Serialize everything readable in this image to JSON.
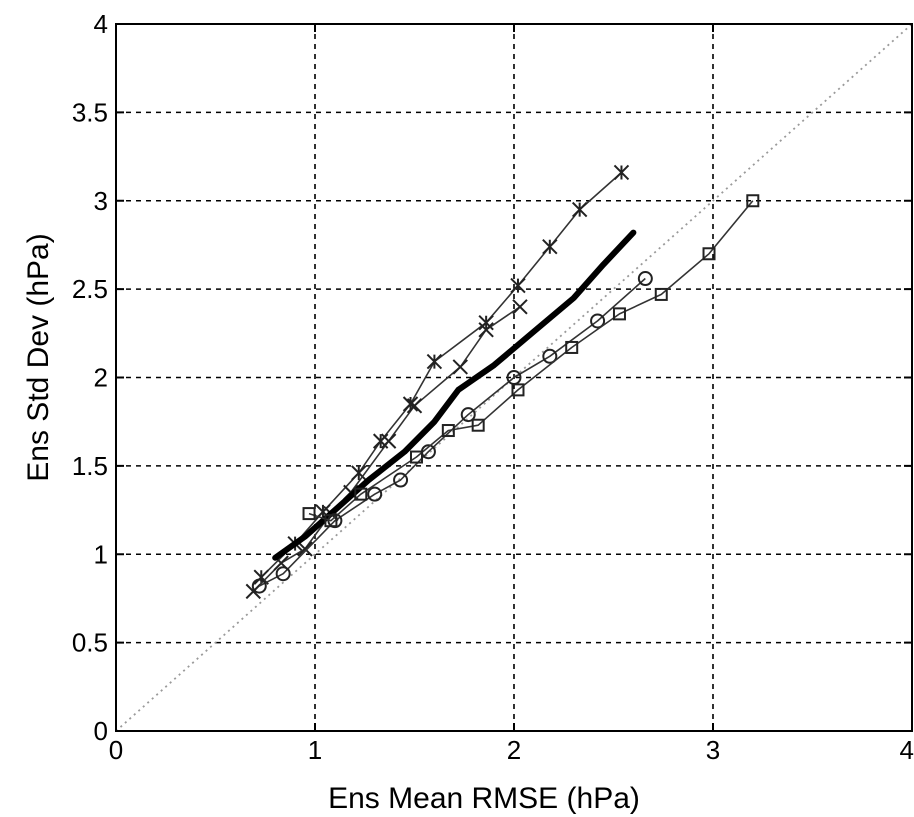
{
  "chart_data": {
    "type": "line",
    "title": "",
    "xlabel": "Ens Mean RMSE (hPa)",
    "ylabel": "Ens Std Dev (hPa)",
    "xlim": [
      0,
      4
    ],
    "ylim": [
      0,
      4
    ],
    "grid": true,
    "x_ticks": [
      0,
      1,
      2,
      3,
      4
    ],
    "y_ticks": [
      0,
      0.5,
      1,
      1.5,
      2,
      2.5,
      3,
      3.5,
      4
    ],
    "x_tick_labels": [
      "0",
      "1",
      "2",
      "3",
      "4"
    ],
    "y_tick_labels": [
      "0",
      "0.5",
      "1",
      "1.5",
      "2",
      "2.5",
      "3",
      "3.5",
      "4"
    ],
    "reference_line": {
      "style": "dotted",
      "from": [
        0,
        0
      ],
      "to": [
        4,
        4
      ]
    },
    "series": [
      {
        "marker": "star",
        "points": [
          [
            0.73,
            0.87
          ],
          [
            0.9,
            1.06
          ],
          [
            1.04,
            1.24
          ],
          [
            1.22,
            1.46
          ],
          [
            1.33,
            1.64
          ],
          [
            1.48,
            1.85
          ],
          [
            1.6,
            2.09
          ],
          [
            1.86,
            2.31
          ],
          [
            2.02,
            2.52
          ],
          [
            2.18,
            2.74
          ],
          [
            2.33,
            2.95
          ],
          [
            2.54,
            3.16
          ]
        ]
      },
      {
        "marker": "x",
        "points": [
          [
            0.69,
            0.79
          ],
          [
            0.83,
            0.95
          ],
          [
            0.95,
            1.03
          ],
          [
            1.08,
            1.23
          ],
          [
            1.18,
            1.35
          ],
          [
            1.37,
            1.64
          ],
          [
            1.5,
            1.84
          ],
          [
            1.73,
            2.06
          ],
          [
            1.86,
            2.27
          ],
          [
            2.03,
            2.4
          ]
        ]
      },
      {
        "marker": "none",
        "line_style": "thick",
        "points": [
          [
            0.8,
            0.98
          ],
          [
            0.95,
            1.1
          ],
          [
            1.1,
            1.25
          ],
          [
            1.27,
            1.42
          ],
          [
            1.45,
            1.58
          ],
          [
            1.6,
            1.75
          ],
          [
            1.72,
            1.93
          ],
          [
            1.9,
            2.07
          ],
          [
            2.1,
            2.26
          ],
          [
            2.3,
            2.45
          ],
          [
            2.45,
            2.64
          ],
          [
            2.6,
            2.82
          ]
        ]
      },
      {
        "marker": "circle",
        "points": [
          [
            0.72,
            0.82
          ],
          [
            0.84,
            0.89
          ],
          [
            1.1,
            1.19
          ],
          [
            1.3,
            1.34
          ],
          [
            1.43,
            1.42
          ],
          [
            1.57,
            1.58
          ],
          [
            1.77,
            1.79
          ],
          [
            2.0,
            2.0
          ],
          [
            2.18,
            2.12
          ],
          [
            2.42,
            2.32
          ],
          [
            2.66,
            2.56
          ]
        ]
      },
      {
        "marker": "square",
        "points": [
          [
            0.97,
            1.23
          ],
          [
            1.08,
            1.19
          ],
          [
            1.23,
            1.34
          ],
          [
            1.51,
            1.55
          ],
          [
            1.67,
            1.7
          ],
          [
            1.82,
            1.73
          ],
          [
            2.02,
            1.93
          ],
          [
            2.29,
            2.17
          ],
          [
            2.53,
            2.36
          ],
          [
            2.74,
            2.47
          ],
          [
            2.98,
            2.7
          ],
          [
            3.2,
            3.0
          ]
        ]
      }
    ]
  }
}
